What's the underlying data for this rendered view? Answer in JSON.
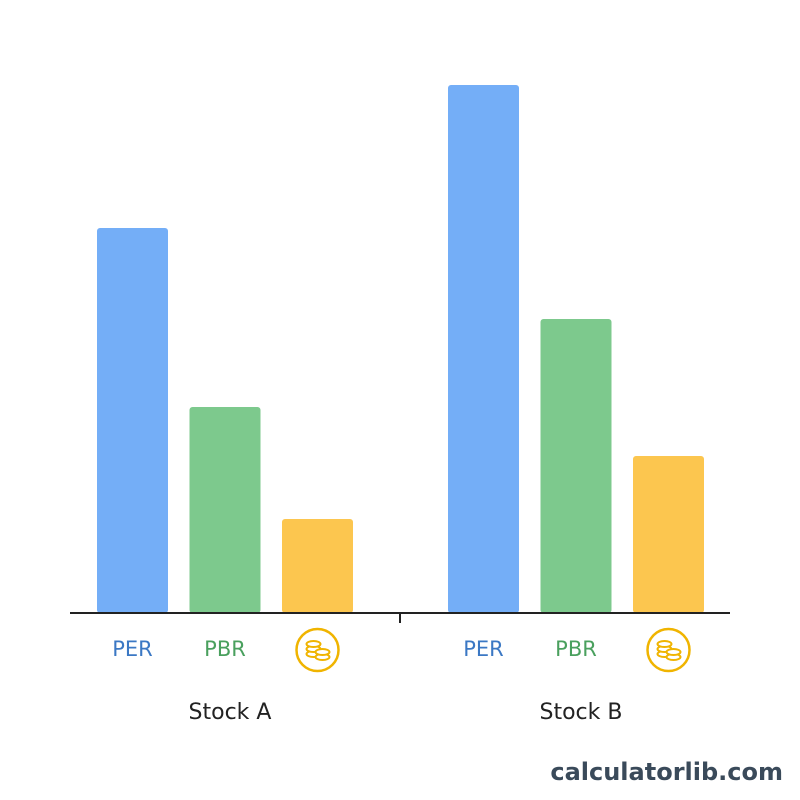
{
  "chart_data": {
    "type": "bar",
    "categories": [
      "Stock A",
      "Stock B"
    ],
    "series": [
      {
        "name": "PER",
        "color": "#74aef7",
        "label_color": "#3b78c4",
        "values": [
          385,
          528
        ]
      },
      {
        "name": "PBR",
        "color": "#7dc98d",
        "label_color": "#4aa05e",
        "values": [
          206,
          294
        ]
      },
      {
        "name": null,
        "color": "#fcc64f",
        "label_color": "#f0b400",
        "values": [
          94,
          157
        ]
      }
    ],
    "ylim": [
      0,
      550
    ]
  },
  "watermark": "calculatorlib.com"
}
